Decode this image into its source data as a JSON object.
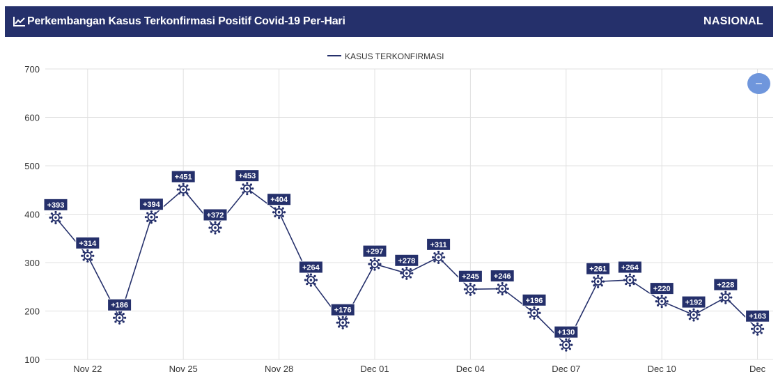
{
  "header": {
    "title": "Perkembangan Kasus Terkonfirmasi Positif Covid-19 Per-Hari",
    "region": "NASIONAL",
    "icon": "line-chart-icon"
  },
  "controls": {
    "collapse_icon": "minus-icon",
    "collapse_symbol": "–"
  },
  "colors": {
    "header_bg": "#25306b",
    "series": "#25306b",
    "label_bg": "#25306b",
    "button": "#6f96dc",
    "grid": "#e0e0e0"
  },
  "chart_data": {
    "type": "line",
    "title": "Perkembangan Kasus Terkonfirmasi Positif Covid-19 Per-Hari",
    "legend_position": "top-center",
    "grid": true,
    "ylim": [
      100,
      700
    ],
    "y_ticks": [
      100,
      200,
      300,
      400,
      500,
      600,
      700
    ],
    "x_ticks": [
      "Nov 22",
      "Nov 25",
      "Nov 28",
      "Dec 01",
      "Dec 04",
      "Dec 07",
      "Dec 10",
      "Dec"
    ],
    "x": [
      "Nov 21",
      "Nov 22",
      "Nov 23",
      "Nov 24",
      "Nov 25",
      "Nov 26",
      "Nov 27",
      "Nov 28",
      "Nov 29",
      "Nov 30",
      "Dec 01",
      "Dec 02",
      "Dec 03",
      "Dec 04",
      "Dec 05",
      "Dec 06",
      "Dec 07",
      "Dec 08",
      "Dec 09",
      "Dec 10",
      "Dec 11",
      "Dec 12",
      "Dec 13"
    ],
    "series": [
      {
        "name": "KASUS TERKONFIRMASI",
        "values": [
          393,
          314,
          186,
          394,
          451,
          372,
          453,
          404,
          264,
          176,
          297,
          278,
          311,
          245,
          246,
          196,
          130,
          261,
          264,
          220,
          192,
          228,
          163
        ],
        "labels": [
          "+393",
          "+314",
          "+186",
          "+394",
          "+451",
          "+372",
          "+453",
          "+404",
          "+264",
          "+176",
          "+297",
          "+278",
          "+311",
          "+245",
          "+246",
          "+196",
          "+130",
          "+261",
          "+264",
          "+220",
          "+192",
          "+228",
          "+163"
        ]
      }
    ]
  }
}
